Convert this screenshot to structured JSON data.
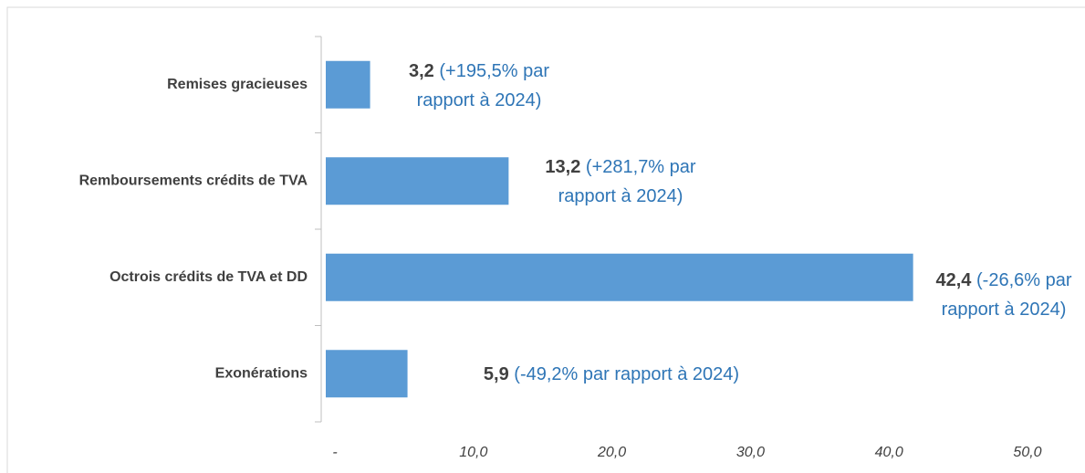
{
  "chart_data": {
    "type": "barh",
    "categories": [
      "Remises gracieuses",
      "Remboursements crédits de TVA",
      "Octrois crédits de TVA et DD",
      "Exonérations"
    ],
    "values": [
      3.2,
      13.2,
      42.4,
      5.9
    ],
    "value_labels": [
      "3,2",
      "13,2",
      "42,4",
      "5,9"
    ],
    "annotations": [
      "(+195,5% par rapport à 2024)",
      "(+281,7% par rapport à 2024)",
      "(-26,6% par rapport à 2024)",
      "(-49,2% par rapport à 2024)"
    ],
    "color": "#5b9bd5",
    "xlim": [
      0,
      50
    ],
    "xticks": [
      {
        "value": 0,
        "label": "-"
      },
      {
        "value": 10,
        "label": "10,0"
      },
      {
        "value": 20,
        "label": "20,0"
      },
      {
        "value": 30,
        "label": "30,0"
      },
      {
        "value": 40,
        "label": "40,0"
      },
      {
        "value": 50,
        "label": "50,0"
      }
    ],
    "grid": false
  }
}
